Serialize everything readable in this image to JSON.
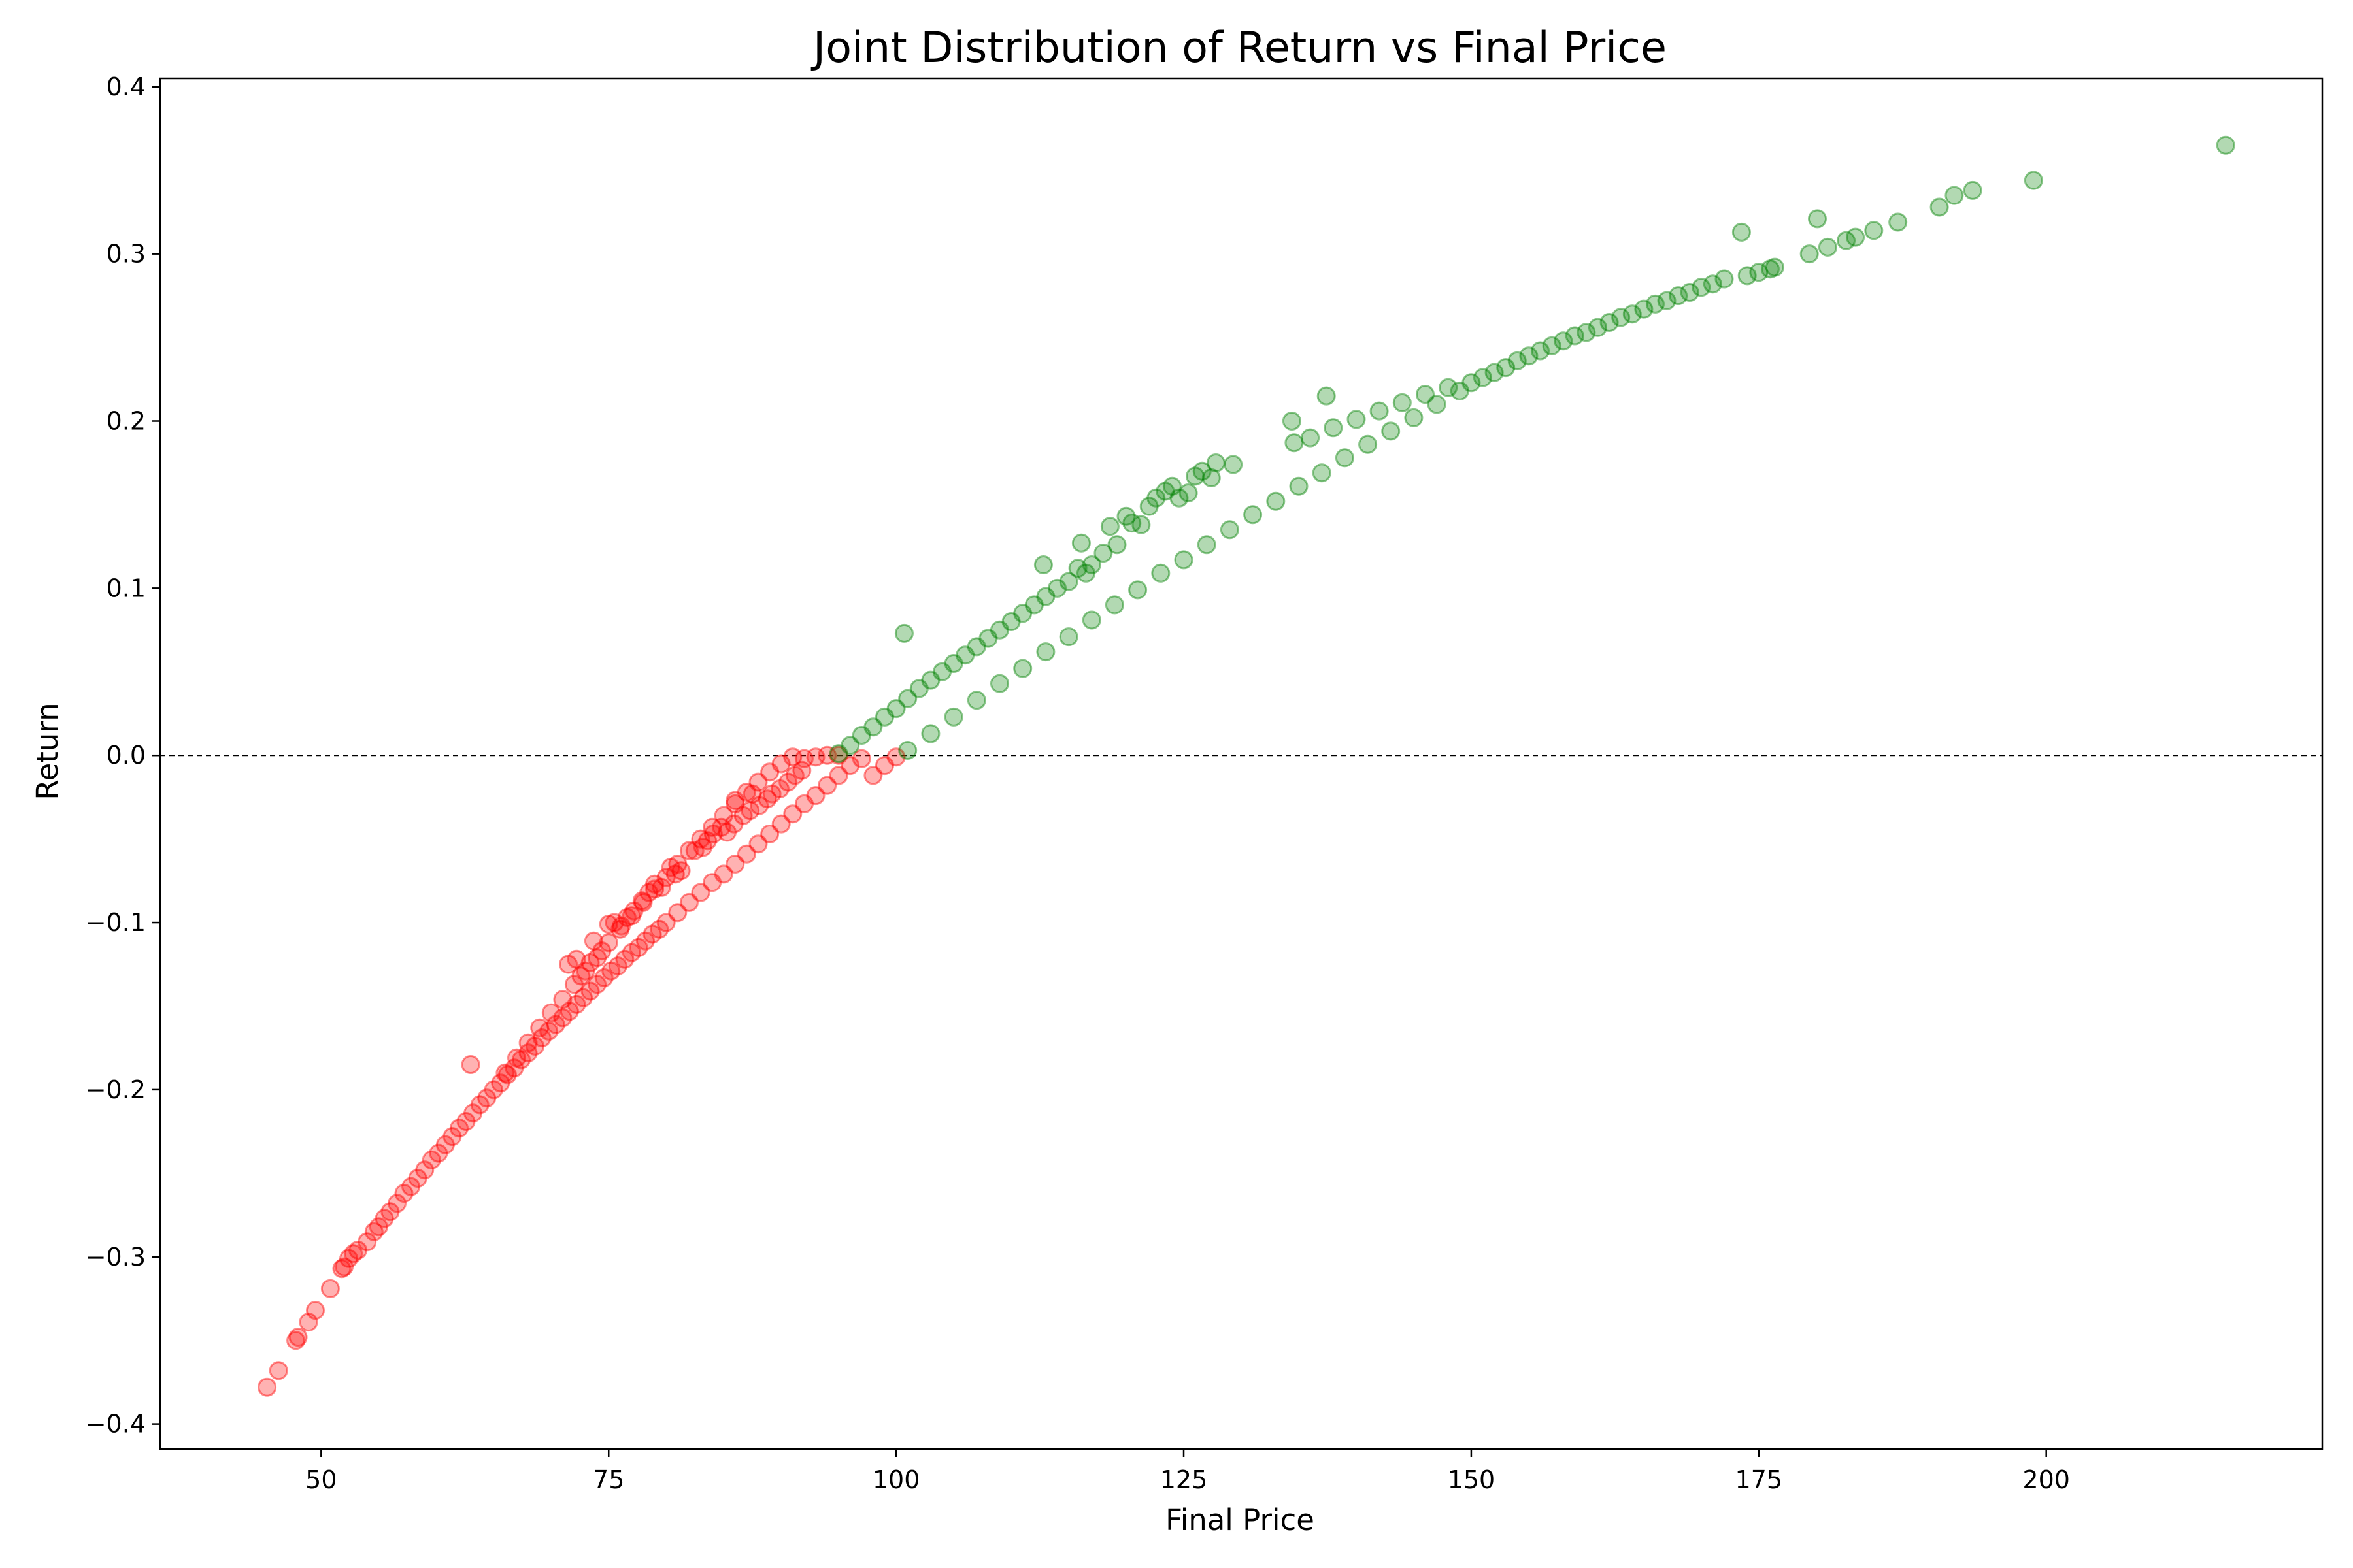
{
  "chart_data": {
    "type": "scatter",
    "title": "Joint Distribution of Return vs Final Price",
    "xlabel": "Final Price",
    "ylabel": "Return",
    "xlim": [
      36,
      224
    ],
    "ylim": [
      -0.415,
      0.405
    ],
    "xticks": [
      50,
      75,
      100,
      125,
      150,
      175,
      200
    ],
    "yticks": [
      -0.4,
      -0.3,
      -0.2,
      -0.1,
      0.0,
      0.1,
      0.2,
      0.3,
      0.4
    ],
    "ytick_labels": [
      "−0.4",
      "−0.3",
      "−0.2",
      "−0.1",
      "0.0",
      "0.1",
      "0.2",
      "0.3",
      "0.4"
    ],
    "grid": false,
    "reference_line": {
      "y": 0.0,
      "style": "dashed",
      "color": "#000000"
    },
    "colors": {
      "negative": "#ff0000",
      "positive": "#008000"
    },
    "marker_alpha": 0.3,
    "series": [
      {
        "color": "#ff0000",
        "points": [
          [
            45.3,
            -0.378
          ],
          [
            46.3,
            -0.368
          ],
          [
            47.8,
            -0.35
          ],
          [
            48.0,
            -0.348
          ],
          [
            48.9,
            -0.339
          ],
          [
            49.5,
            -0.332
          ],
          [
            50.8,
            -0.319
          ],
          [
            51.8,
            -0.307
          ],
          [
            52.0,
            -0.306
          ],
          [
            52.4,
            -0.301
          ],
          [
            52.8,
            -0.298
          ],
          [
            53.2,
            -0.296
          ],
          [
            54.0,
            -0.291
          ],
          [
            54.6,
            -0.285
          ],
          [
            55.0,
            -0.282
          ],
          [
            55.5,
            -0.277
          ],
          [
            56.0,
            -0.273
          ],
          [
            56.6,
            -0.268
          ],
          [
            57.2,
            -0.262
          ],
          [
            57.8,
            -0.258
          ],
          [
            58.4,
            -0.253
          ],
          [
            59.0,
            -0.248
          ],
          [
            59.6,
            -0.242
          ],
          [
            60.2,
            -0.238
          ],
          [
            60.8,
            -0.233
          ],
          [
            61.4,
            -0.228
          ],
          [
            62.0,
            -0.223
          ],
          [
            62.6,
            -0.219
          ],
          [
            63.0,
            -0.185
          ],
          [
            63.2,
            -0.214
          ],
          [
            63.8,
            -0.209
          ],
          [
            64.4,
            -0.205
          ],
          [
            65.0,
            -0.2
          ],
          [
            65.6,
            -0.196
          ],
          [
            66.2,
            -0.191
          ],
          [
            66.8,
            -0.187
          ],
          [
            67.4,
            -0.182
          ],
          [
            68.0,
            -0.178
          ],
          [
            68.6,
            -0.174
          ],
          [
            69.2,
            -0.169
          ],
          [
            69.8,
            -0.165
          ],
          [
            70.4,
            -0.161
          ],
          [
            71.0,
            -0.157
          ],
          [
            71.6,
            -0.153
          ],
          [
            72.2,
            -0.149
          ],
          [
            72.8,
            -0.145
          ],
          [
            73.4,
            -0.141
          ],
          [
            74.0,
            -0.137
          ],
          [
            74.6,
            -0.133
          ],
          [
            75.2,
            -0.129
          ],
          [
            75.8,
            -0.126
          ],
          [
            76.4,
            -0.122
          ],
          [
            77.0,
            -0.118
          ],
          [
            77.6,
            -0.115
          ],
          [
            78.2,
            -0.111
          ],
          [
            78.8,
            -0.107
          ],
          [
            79.4,
            -0.104
          ],
          [
            80.0,
            -0.1
          ],
          [
            81.0,
            -0.094
          ],
          [
            82.0,
            -0.088
          ],
          [
            83.0,
            -0.082
          ],
          [
            84.0,
            -0.076
          ],
          [
            85.0,
            -0.071
          ],
          [
            86.0,
            -0.065
          ],
          [
            87.0,
            -0.059
          ],
          [
            88.0,
            -0.053
          ],
          [
            89.0,
            -0.047
          ],
          [
            90.0,
            -0.041
          ],
          [
            91.0,
            -0.035
          ],
          [
            92.0,
            -0.029
          ],
          [
            93.0,
            -0.024
          ],
          [
            94.0,
            -0.018
          ],
          [
            95.0,
            -0.012
          ],
          [
            96.0,
            -0.006
          ],
          [
            97.0,
            -0.002
          ],
          [
            98.0,
            -0.012
          ],
          [
            99.0,
            -0.006
          ],
          [
            100.0,
            -0.001
          ],
          [
            66.0,
            -0.19
          ],
          [
            67.0,
            -0.181
          ],
          [
            68.0,
            -0.172
          ],
          [
            69.0,
            -0.163
          ],
          [
            70.0,
            -0.154
          ],
          [
            71.0,
            -0.146
          ],
          [
            72.0,
            -0.137
          ],
          [
            73.0,
            -0.129
          ],
          [
            74.0,
            -0.121
          ],
          [
            75.0,
            -0.112
          ],
          [
            76.0,
            -0.104
          ],
          [
            77.0,
            -0.096
          ],
          [
            78.0,
            -0.088
          ],
          [
            79.0,
            -0.08
          ],
          [
            80.0,
            -0.073
          ],
          [
            81.0,
            -0.065
          ],
          [
            82.0,
            -0.057
          ],
          [
            83.0,
            -0.05
          ],
          [
            84.0,
            -0.043
          ],
          [
            85.0,
            -0.036
          ],
          [
            86.0,
            -0.029
          ],
          [
            87.0,
            -0.022
          ],
          [
            88.0,
            -0.016
          ],
          [
            89.0,
            -0.01
          ],
          [
            90.0,
            -0.005
          ],
          [
            91.0,
            -0.001
          ],
          [
            92.0,
            -0.002
          ],
          [
            93.0,
            -0.001
          ],
          [
            94.0,
            0.0
          ],
          [
            95.0,
            0.0
          ],
          [
            71.5,
            -0.125
          ],
          [
            72.2,
            -0.122
          ],
          [
            72.6,
            -0.132
          ],
          [
            73.4,
            -0.124
          ],
          [
            73.7,
            -0.111
          ],
          [
            74.4,
            -0.117
          ],
          [
            75.0,
            -0.101
          ],
          [
            75.5,
            -0.1
          ],
          [
            76.1,
            -0.102
          ],
          [
            76.6,
            -0.097
          ],
          [
            77.2,
            -0.093
          ],
          [
            77.9,
            -0.087
          ],
          [
            78.5,
            -0.082
          ],
          [
            79.0,
            -0.077
          ],
          [
            79.6,
            -0.079
          ],
          [
            80.4,
            -0.067
          ],
          [
            80.8,
            -0.071
          ],
          [
            81.3,
            -0.069
          ],
          [
            82.5,
            -0.057
          ],
          [
            83.2,
            -0.055
          ],
          [
            83.6,
            -0.051
          ],
          [
            84.1,
            -0.047
          ],
          [
            84.8,
            -0.043
          ],
          [
            85.3,
            -0.046
          ],
          [
            85.9,
            -0.041
          ],
          [
            86.0,
            -0.027
          ],
          [
            86.7,
            -0.036
          ],
          [
            87.3,
            -0.033
          ],
          [
            87.5,
            -0.023
          ],
          [
            88.1,
            -0.03
          ],
          [
            88.8,
            -0.026
          ],
          [
            89.2,
            -0.023
          ],
          [
            89.9,
            -0.02
          ],
          [
            90.6,
            -0.016
          ],
          [
            91.2,
            -0.012
          ],
          [
            91.8,
            -0.009
          ]
        ]
      },
      {
        "color": "#008000",
        "points": [
          [
            95.0,
            0.001
          ],
          [
            96.0,
            0.006
          ],
          [
            97.0,
            0.012
          ],
          [
            98.0,
            0.017
          ],
          [
            99.0,
            0.023
          ],
          [
            100.0,
            0.028
          ],
          [
            100.7,
            0.073
          ],
          [
            101.0,
            0.034
          ],
          [
            102.0,
            0.04
          ],
          [
            103.0,
            0.045
          ],
          [
            104.0,
            0.05
          ],
          [
            105.0,
            0.055
          ],
          [
            106.0,
            0.06
          ],
          [
            107.0,
            0.065
          ],
          [
            108.0,
            0.07
          ],
          [
            109.0,
            0.075
          ],
          [
            110.0,
            0.08
          ],
          [
            111.0,
            0.085
          ],
          [
            112.0,
            0.09
          ],
          [
            112.8,
            0.114
          ],
          [
            113.0,
            0.095
          ],
          [
            114.0,
            0.1
          ],
          [
            115.0,
            0.104
          ],
          [
            115.8,
            0.112
          ],
          [
            116.1,
            0.127
          ],
          [
            116.5,
            0.109
          ],
          [
            117.0,
            0.114
          ],
          [
            118.0,
            0.121
          ],
          [
            118.6,
            0.137
          ],
          [
            119.2,
            0.126
          ],
          [
            120.0,
            0.143
          ],
          [
            120.5,
            0.139
          ],
          [
            121.3,
            0.138
          ],
          [
            122.0,
            0.149
          ],
          [
            122.6,
            0.154
          ],
          [
            123.4,
            0.158
          ],
          [
            124.0,
            0.161
          ],
          [
            124.6,
            0.154
          ],
          [
            125.4,
            0.157
          ],
          [
            126.0,
            0.167
          ],
          [
            126.6,
            0.17
          ],
          [
            127.4,
            0.166
          ],
          [
            127.8,
            0.175
          ],
          [
            129.3,
            0.174
          ],
          [
            101.0,
            0.003
          ],
          [
            103.0,
            0.013
          ],
          [
            105.0,
            0.023
          ],
          [
            107.0,
            0.033
          ],
          [
            109.0,
            0.043
          ],
          [
            111.0,
            0.052
          ],
          [
            113.0,
            0.062
          ],
          [
            115.0,
            0.071
          ],
          [
            117.0,
            0.081
          ],
          [
            119.0,
            0.09
          ],
          [
            121.0,
            0.099
          ],
          [
            123.0,
            0.109
          ],
          [
            125.0,
            0.117
          ],
          [
            127.0,
            0.126
          ],
          [
            129.0,
            0.135
          ],
          [
            131.0,
            0.144
          ],
          [
            133.0,
            0.152
          ],
          [
            134.4,
            0.2
          ],
          [
            134.6,
            0.187
          ],
          [
            135.0,
            0.161
          ],
          [
            136.0,
            0.19
          ],
          [
            137.0,
            0.169
          ],
          [
            137.4,
            0.215
          ],
          [
            138.0,
            0.196
          ],
          [
            139.0,
            0.178
          ],
          [
            140.0,
            0.201
          ],
          [
            141.0,
            0.186
          ],
          [
            142.0,
            0.206
          ],
          [
            143.0,
            0.194
          ],
          [
            144.0,
            0.211
          ],
          [
            145.0,
            0.202
          ],
          [
            146.0,
            0.216
          ],
          [
            147.0,
            0.21
          ],
          [
            148.0,
            0.22
          ],
          [
            149.0,
            0.218
          ],
          [
            150.0,
            0.223
          ],
          [
            151.0,
            0.226
          ],
          [
            152.0,
            0.229
          ],
          [
            153.0,
            0.232
          ],
          [
            154.0,
            0.236
          ],
          [
            155.0,
            0.239
          ],
          [
            156.0,
            0.242
          ],
          [
            157.0,
            0.245
          ],
          [
            158.0,
            0.248
          ],
          [
            159.0,
            0.251
          ],
          [
            160.0,
            0.253
          ],
          [
            161.0,
            0.256
          ],
          [
            162.0,
            0.259
          ],
          [
            163.0,
            0.262
          ],
          [
            164.0,
            0.264
          ],
          [
            165.0,
            0.267
          ],
          [
            166.0,
            0.27
          ],
          [
            167.0,
            0.272
          ],
          [
            168.0,
            0.275
          ],
          [
            169.0,
            0.277
          ],
          [
            170.0,
            0.28
          ],
          [
            171.0,
            0.282
          ],
          [
            172.0,
            0.285
          ],
          [
            173.5,
            0.313
          ],
          [
            174.0,
            0.287
          ],
          [
            175.0,
            0.289
          ],
          [
            176.0,
            0.291
          ],
          [
            176.4,
            0.292
          ],
          [
            179.4,
            0.3
          ],
          [
            180.1,
            0.321
          ],
          [
            181.0,
            0.304
          ],
          [
            182.6,
            0.308
          ],
          [
            183.4,
            0.31
          ],
          [
            185.0,
            0.314
          ],
          [
            187.1,
            0.319
          ],
          [
            190.7,
            0.328
          ],
          [
            192.0,
            0.335
          ],
          [
            193.6,
            0.338
          ],
          [
            198.9,
            0.344
          ],
          [
            215.6,
            0.365
          ]
        ]
      }
    ]
  }
}
